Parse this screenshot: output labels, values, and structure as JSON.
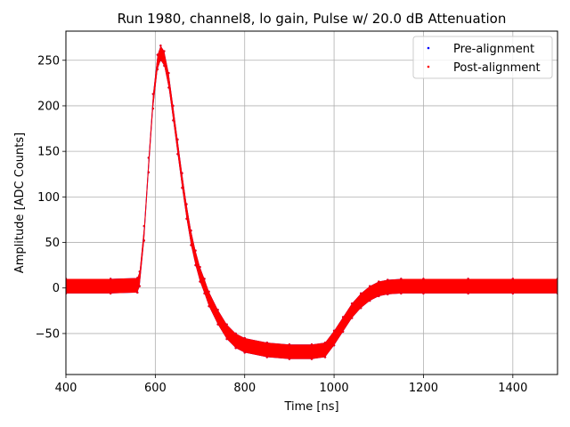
{
  "chart_data": {
    "type": "scatter",
    "title": "Run 1980, channel8, lo gain, Pulse w/ 20.0 dB Attenuation",
    "xlabel": "Time [ns]",
    "ylabel": "Amplitude [ADC Counts]",
    "xlim": [
      400,
      1500
    ],
    "ylim": [
      -95,
      282
    ],
    "xticks": [
      400,
      600,
      800,
      1000,
      1200,
      1400
    ],
    "yticks": [
      -50,
      0,
      50,
      100,
      150,
      200,
      250
    ],
    "grid": true,
    "legend_position": "top-right",
    "band_halfwidth": 8,
    "series": [
      {
        "name": "Pre-alignment",
        "color": "#0000ff",
        "x": [
          400,
          500,
          560,
          565,
          575,
          585,
          595,
          605,
          612,
          620,
          630,
          640,
          650,
          660,
          670,
          680,
          690,
          700,
          710,
          720,
          740,
          760,
          780,
          800,
          850,
          900,
          950,
          980,
          1000,
          1020,
          1040,
          1060,
          1080,
          1100,
          1120,
          1150,
          1200,
          1300,
          1400,
          1500
        ],
        "values": [
          2,
          2,
          3,
          10,
          60,
          135,
          205,
          248,
          258,
          252,
          228,
          192,
          155,
          118,
          84,
          55,
          33,
          15,
          2,
          -12,
          -32,
          -48,
          -58,
          -63,
          -68,
          -70,
          -70,
          -68,
          -55,
          -40,
          -25,
          -14,
          -6,
          -1,
          1,
          2,
          2,
          2,
          2,
          2
        ]
      },
      {
        "name": "Post-alignment",
        "color": "#ff0000",
        "x": [
          400,
          500,
          560,
          565,
          575,
          585,
          595,
          605,
          612,
          620,
          630,
          640,
          650,
          660,
          670,
          680,
          690,
          700,
          710,
          720,
          740,
          760,
          780,
          800,
          850,
          900,
          950,
          980,
          1000,
          1020,
          1040,
          1060,
          1080,
          1100,
          1120,
          1150,
          1200,
          1300,
          1400,
          1500
        ],
        "values": [
          2,
          2,
          3,
          10,
          60,
          135,
          205,
          248,
          258,
          252,
          228,
          192,
          155,
          118,
          84,
          55,
          33,
          15,
          2,
          -12,
          -32,
          -48,
          -58,
          -63,
          -68,
          -70,
          -70,
          -68,
          -55,
          -40,
          -25,
          -14,
          -6,
          -1,
          1,
          2,
          2,
          2,
          2,
          2
        ]
      }
    ]
  }
}
